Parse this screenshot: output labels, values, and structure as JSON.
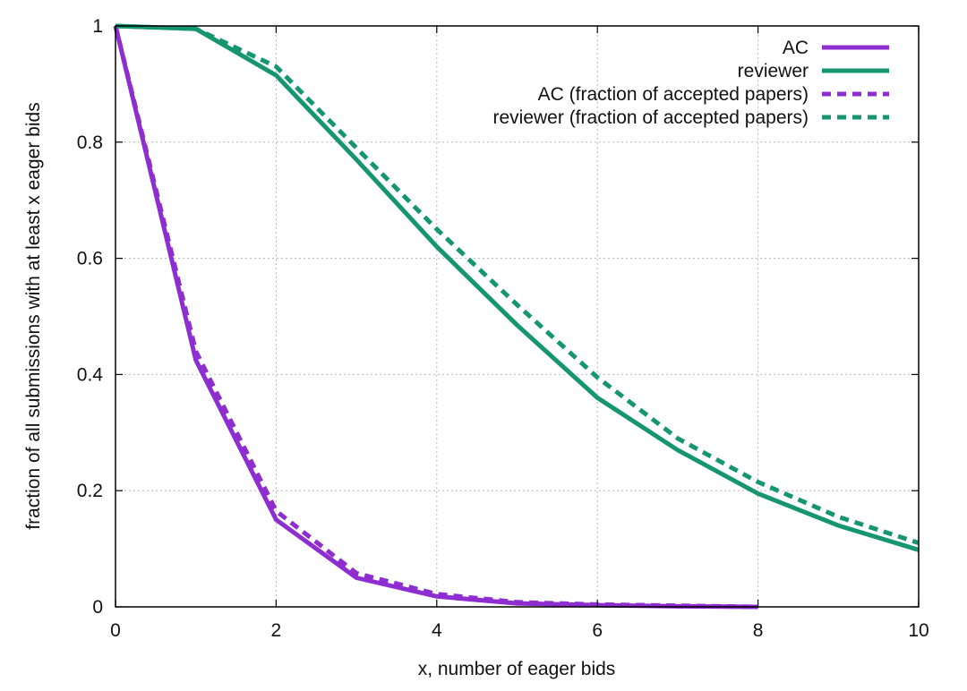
{
  "chart_data": {
    "type": "line",
    "title": "",
    "xlabel": "x, number of eager bids",
    "ylabel": "fraction of all submissions with at least x eager bids",
    "xlim": [
      0,
      10
    ],
    "ylim": [
      0,
      1
    ],
    "xticks": [
      0,
      2,
      4,
      6,
      8,
      10
    ],
    "yticks": [
      0,
      0.2,
      0.4,
      0.6,
      0.8,
      1
    ],
    "xtick_labels": [
      "0",
      "2",
      "4",
      "6",
      "8",
      "10"
    ],
    "ytick_labels": [
      "0",
      "0.2",
      "0.4",
      "0.6",
      "0.8",
      "1"
    ],
    "grid": true,
    "legend_position": "top-right",
    "series": [
      {
        "name": "AC",
        "color": "#8e2ed0",
        "style": "solid",
        "x": [
          0,
          1,
          2,
          3,
          4,
          5,
          6,
          7,
          8
        ],
        "y": [
          1.0,
          0.425,
          0.15,
          0.05,
          0.018,
          0.006,
          0.003,
          0.001,
          0.0
        ]
      },
      {
        "name": "reviewer",
        "color": "#15966e",
        "style": "solid",
        "x": [
          0,
          1,
          2,
          3,
          4,
          5,
          6,
          7,
          8,
          9,
          10
        ],
        "y": [
          1.0,
          0.995,
          0.915,
          0.77,
          0.62,
          0.485,
          0.36,
          0.27,
          0.195,
          0.14,
          0.098
        ]
      },
      {
        "name": "AC (fraction of accepted papers)",
        "color": "#8e2ed0",
        "style": "dashed",
        "x": [
          0,
          1,
          2,
          3,
          4,
          5,
          6,
          7,
          8
        ],
        "y": [
          1.0,
          0.44,
          0.165,
          0.058,
          0.022,
          0.008,
          0.004,
          0.002,
          0.0
        ]
      },
      {
        "name": "reviewer (fraction of accepted papers)",
        "color": "#15966e",
        "style": "dashed",
        "x": [
          0,
          1,
          2,
          3,
          4,
          5,
          6,
          7,
          8,
          9,
          10
        ],
        "y": [
          1.0,
          0.995,
          0.93,
          0.79,
          0.65,
          0.52,
          0.395,
          0.29,
          0.215,
          0.155,
          0.11
        ]
      }
    ]
  }
}
